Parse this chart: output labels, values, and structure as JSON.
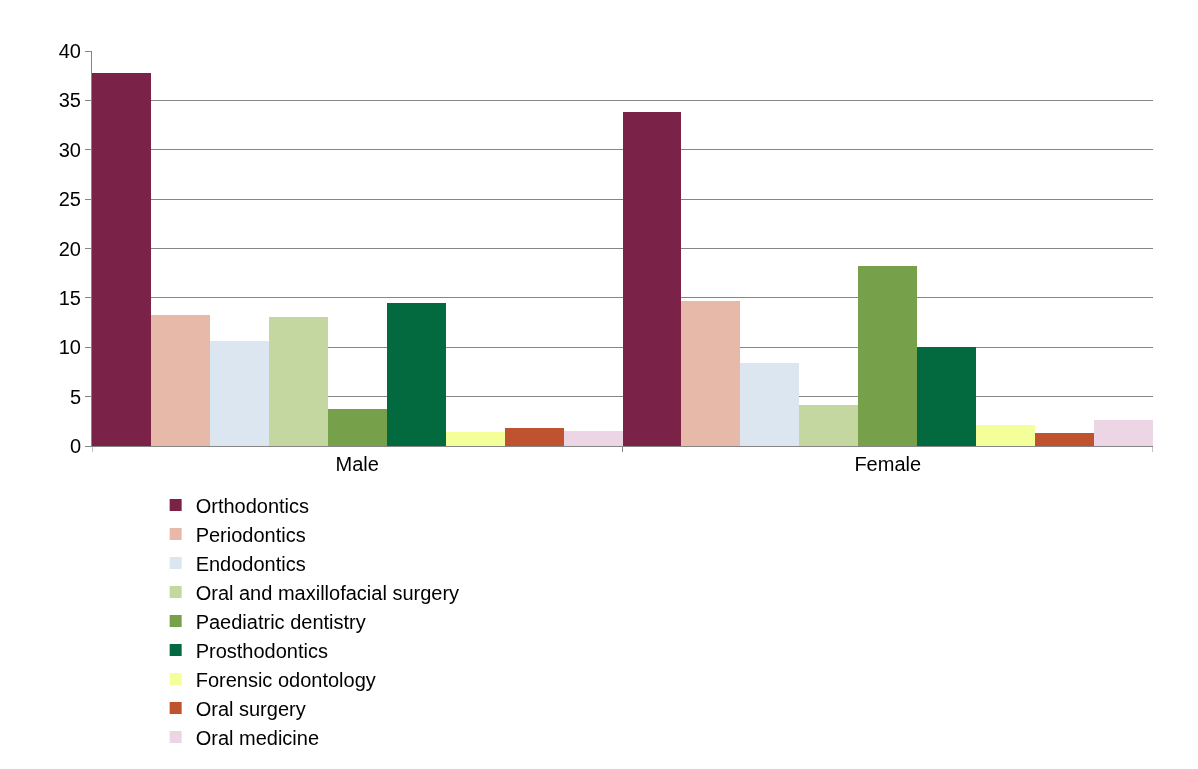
{
  "chart_data": {
    "type": "bar",
    "categories": [
      "Male",
      "Female"
    ],
    "series": [
      {
        "name": "Orthodontics",
        "color": "#7b2249",
        "values": [
          37.8,
          33.8
        ]
      },
      {
        "name": "Periodontics",
        "color": "#e6b9a8",
        "values": [
          13.3,
          14.7
        ]
      },
      {
        "name": "Endodontics",
        "color": "#dce6f0",
        "values": [
          10.6,
          8.4
        ]
      },
      {
        "name": "Oral and maxillofacial surgery",
        "color": "#c4d7a0",
        "values": [
          13.1,
          4.2
        ]
      },
      {
        "name": "Paediatric dentistry",
        "color": "#77a04a",
        "values": [
          3.7,
          18.2
        ]
      },
      {
        "name": "Prosthodontics",
        "color": "#036a3f",
        "values": [
          14.5,
          10.0
        ]
      },
      {
        "name": "Forensic odontology",
        "color": "#f5ff9a",
        "values": [
          1.4,
          2.1
        ]
      },
      {
        "name": "Oral surgery",
        "color": "#c0532f",
        "values": [
          1.8,
          1.3
        ]
      },
      {
        "name": "Oral medicine",
        "color": "#ecd6e6",
        "values": [
          1.5,
          2.6
        ]
      }
    ],
    "ylim": [
      0,
      40
    ],
    "yticks": [
      0,
      5,
      10,
      15,
      20,
      25,
      30,
      35,
      40
    ],
    "grid": "y",
    "legend": "bottom"
  }
}
